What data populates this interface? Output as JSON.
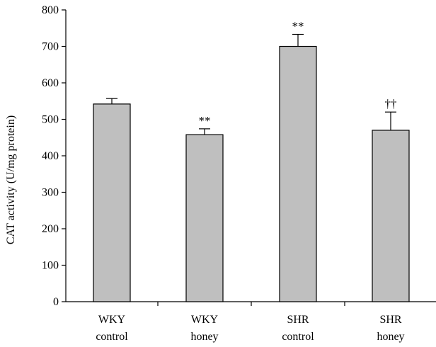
{
  "chart_data": {
    "type": "bar",
    "categories": [
      [
        "WKY",
        "control"
      ],
      [
        "WKY",
        "honey"
      ],
      [
        "SHR",
        "control"
      ],
      [
        "SHR",
        "honey"
      ]
    ],
    "values": [
      542,
      458,
      700,
      470
    ],
    "error_upper": [
      557,
      474,
      733,
      520
    ],
    "annotations": [
      "",
      "**",
      "**",
      "††"
    ],
    "title": "",
    "xlabel": "",
    "ylabel": "CAT activity (U/mg protein)",
    "ylim": [
      0,
      800
    ],
    "yticks": [
      0,
      100,
      200,
      300,
      400,
      500,
      600,
      700,
      800
    ],
    "grid": false,
    "legend": "none",
    "bar_color": "#bfbfbf",
    "edge_color": "#000000"
  }
}
